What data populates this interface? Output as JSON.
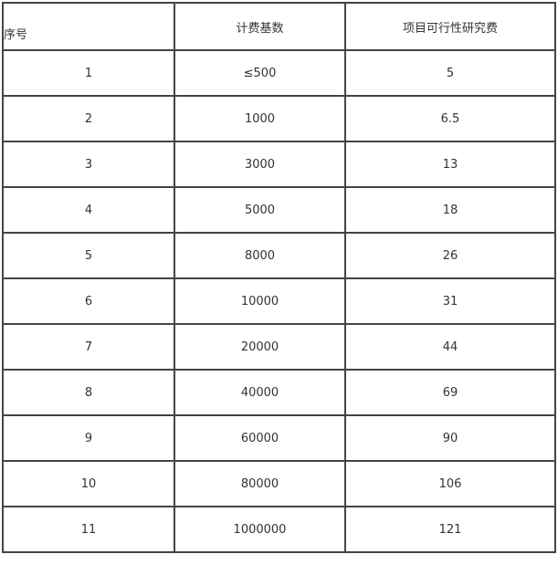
{
  "table": {
    "headers": [
      "序号",
      "计费基数",
      "项目可行性研究费"
    ],
    "rows": [
      [
        "1",
        "≤500",
        "5"
      ],
      [
        "2",
        "1000",
        "6.5"
      ],
      [
        "3",
        "3000",
        "13"
      ],
      [
        "4",
        "5000",
        "18"
      ],
      [
        "5",
        "8000",
        "26"
      ],
      [
        "6",
        "10000",
        "31"
      ],
      [
        "7",
        "20000",
        "44"
      ],
      [
        "8",
        "40000",
        "69"
      ],
      [
        "9",
        "60000",
        "90"
      ],
      [
        "10",
        "80000",
        "106"
      ],
      [
        "11",
        "1000000",
        "121"
      ]
    ]
  }
}
